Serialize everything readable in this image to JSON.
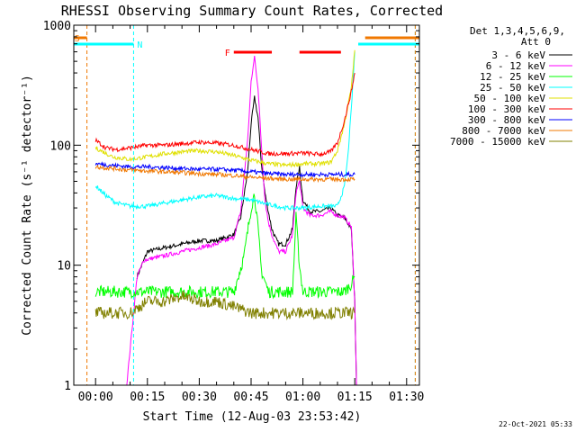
{
  "chart_data": {
    "type": "line",
    "title": "RHESSI Observing Summary Count Rates, Corrected",
    "xlabel": "Start Time (12-Aug-03 23:53:42)",
    "ylabel": "Corrected Count Rate (s⁻¹ detector⁻¹)",
    "yscale": "log",
    "ylim": [
      1,
      1000
    ],
    "xlim_minutes": [
      -6.3,
      93.7
    ],
    "yticks": [
      {
        "v": 1,
        "label": "1"
      },
      {
        "v": 10,
        "label": "10"
      },
      {
        "v": 100,
        "label": "100"
      },
      {
        "v": 1000,
        "label": "1000"
      }
    ],
    "xticks": [
      {
        "v": 0,
        "label": "00:00"
      },
      {
        "v": 15,
        "label": "00:15"
      },
      {
        "v": 30,
        "label": "00:30"
      },
      {
        "v": 45,
        "label": "00:45"
      },
      {
        "v": 60,
        "label": "01:00"
      },
      {
        "v": 75,
        "label": "01:15"
      },
      {
        "v": 90,
        "label": "01:30"
      }
    ],
    "legend": {
      "placement": "right",
      "header": [
        "Det 1,3,4,5,6,9,",
        "Att 0"
      ]
    },
    "footer_timestamp": "22-Oct-2021 05:33",
    "flags": [
      {
        "label": "S",
        "color": "#f07800",
        "segments": [
          [
            -6.3,
            -2.5
          ],
          [
            78,
            93.7
          ]
        ]
      },
      {
        "label": "N",
        "color": "#00ffff",
        "segments": [
          [
            -6.3,
            11
          ],
          [
            76,
            93.7
          ]
        ]
      },
      {
        "label": "F",
        "color": "#ff0000",
        "segments": [
          [
            40,
            51
          ],
          [
            59,
            71
          ]
        ]
      }
    ],
    "vlines": [
      {
        "x": -2.5,
        "color": "#f07800"
      },
      {
        "x": 11,
        "color": "#00ffff"
      },
      {
        "x": 92.5,
        "color": "#00ffff"
      },
      {
        "x": 92.5,
        "color": "#f07800"
      }
    ],
    "series": [
      {
        "name": "3 - 6 keV",
        "color": "#000000",
        "points": [
          [
            12,
            8
          ],
          [
            15,
            13
          ],
          [
            20,
            14
          ],
          [
            25,
            15
          ],
          [
            30,
            16
          ],
          [
            35,
            16
          ],
          [
            40,
            18
          ],
          [
            42,
            25
          ],
          [
            44,
            60
          ],
          [
            45,
            150
          ],
          [
            46,
            250
          ],
          [
            47,
            170
          ],
          [
            48,
            70
          ],
          [
            49,
            40
          ],
          [
            50,
            28
          ],
          [
            51,
            20
          ],
          [
            52,
            17
          ],
          [
            53,
            15
          ],
          [
            55,
            15
          ],
          [
            57,
            20
          ],
          [
            58,
            45
          ],
          [
            59,
            65
          ],
          [
            60,
            35
          ],
          [
            62,
            28
          ],
          [
            65,
            28
          ],
          [
            68,
            30
          ],
          [
            70,
            26
          ],
          [
            72,
            25
          ],
          [
            74,
            20
          ],
          [
            75,
            5
          ],
          [
            75.5,
            1
          ]
        ]
      },
      {
        "name": "6 - 12 keV",
        "color": "#ff00ff",
        "points": [
          [
            9,
            1
          ],
          [
            10,
            2
          ],
          [
            12,
            8
          ],
          [
            14,
            11
          ],
          [
            20,
            12
          ],
          [
            25,
            13
          ],
          [
            30,
            14
          ],
          [
            35,
            15
          ],
          [
            40,
            17
          ],
          [
            42,
            28
          ],
          [
            44,
            110
          ],
          [
            45,
            330
          ],
          [
            46,
            550
          ],
          [
            47,
            300
          ],
          [
            48,
            100
          ],
          [
            49,
            35
          ],
          [
            50,
            23
          ],
          [
            51,
            18
          ],
          [
            52,
            15
          ],
          [
            53,
            13
          ],
          [
            55,
            13
          ],
          [
            57,
            18
          ],
          [
            58,
            40
          ],
          [
            59,
            50
          ],
          [
            60,
            30
          ],
          [
            62,
            26
          ],
          [
            65,
            26
          ],
          [
            68,
            28
          ],
          [
            70,
            26
          ],
          [
            72,
            25
          ],
          [
            74,
            21
          ],
          [
            75,
            5
          ],
          [
            75.5,
            1
          ]
        ]
      },
      {
        "name": "12 - 25 keV",
        "color": "#00ff00",
        "points": [
          [
            0,
            6
          ],
          [
            10,
            6
          ],
          [
            20,
            6
          ],
          [
            30,
            6
          ],
          [
            40,
            6
          ],
          [
            43,
            12
          ],
          [
            45,
            30
          ],
          [
            46,
            40
          ],
          [
            47,
            20
          ],
          [
            48,
            9
          ],
          [
            50,
            6
          ],
          [
            57,
            6
          ],
          [
            58,
            25
          ],
          [
            59,
            10
          ],
          [
            60,
            6
          ],
          [
            70,
            6
          ],
          [
            72,
            6
          ],
          [
            74,
            7
          ],
          [
            75,
            8
          ]
        ]
      },
      {
        "name": "25 - 50 keV",
        "color": "#00ffff",
        "points": [
          [
            0,
            46
          ],
          [
            3,
            38
          ],
          [
            6,
            33
          ],
          [
            10,
            31
          ],
          [
            15,
            31
          ],
          [
            20,
            33
          ],
          [
            25,
            35
          ],
          [
            30,
            37
          ],
          [
            35,
            38
          ],
          [
            40,
            36
          ],
          [
            45,
            35
          ],
          [
            50,
            32
          ],
          [
            55,
            30
          ],
          [
            60,
            30
          ],
          [
            65,
            31
          ],
          [
            70,
            31
          ],
          [
            72,
            45
          ],
          [
            73,
            80
          ],
          [
            74,
            200
          ],
          [
            75,
            600
          ]
        ]
      },
      {
        "name": "50 - 100 keV",
        "color": "#e0e000",
        "points": [
          [
            0,
            95
          ],
          [
            5,
            80
          ],
          [
            10,
            76
          ],
          [
            15,
            80
          ],
          [
            20,
            85
          ],
          [
            25,
            88
          ],
          [
            30,
            90
          ],
          [
            35,
            88
          ],
          [
            40,
            82
          ],
          [
            45,
            75
          ],
          [
            50,
            70
          ],
          [
            55,
            68
          ],
          [
            60,
            70
          ],
          [
            65,
            70
          ],
          [
            68,
            72
          ],
          [
            70,
            90
          ],
          [
            72,
            150
          ],
          [
            74,
            300
          ],
          [
            75,
            620
          ]
        ]
      },
      {
        "name": "100 - 300 keV",
        "color": "#ff0000",
        "points": [
          [
            0,
            110
          ],
          [
            3,
            95
          ],
          [
            6,
            92
          ],
          [
            10,
            95
          ],
          [
            15,
            100
          ],
          [
            20,
            100
          ],
          [
            25,
            103
          ],
          [
            30,
            106
          ],
          [
            35,
            104
          ],
          [
            40,
            100
          ],
          [
            45,
            92
          ],
          [
            50,
            85
          ],
          [
            55,
            85
          ],
          [
            60,
            86
          ],
          [
            65,
            84
          ],
          [
            68,
            88
          ],
          [
            70,
            105
          ],
          [
            72,
            160
          ],
          [
            74,
            280
          ],
          [
            75,
            400
          ]
        ]
      },
      {
        "name": "300 - 800 keV",
        "color": "#0000ff",
        "points": [
          [
            0,
            70
          ],
          [
            5,
            68
          ],
          [
            10,
            66
          ],
          [
            15,
            66
          ],
          [
            20,
            65
          ],
          [
            25,
            64
          ],
          [
            30,
            63
          ],
          [
            35,
            63
          ],
          [
            40,
            62
          ],
          [
            45,
            60
          ],
          [
            50,
            58
          ],
          [
            55,
            57
          ],
          [
            60,
            57
          ],
          [
            65,
            57
          ],
          [
            70,
            57
          ],
          [
            75,
            57
          ]
        ]
      },
      {
        "name": "800 - 7000 keV",
        "color": "#f07800",
        "points": [
          [
            0,
            66
          ],
          [
            5,
            64
          ],
          [
            10,
            62
          ],
          [
            15,
            61
          ],
          [
            20,
            60
          ],
          [
            25,
            59
          ],
          [
            30,
            58
          ],
          [
            35,
            57
          ],
          [
            40,
            56
          ],
          [
            45,
            54
          ],
          [
            50,
            53
          ],
          [
            55,
            52
          ],
          [
            60,
            52
          ],
          [
            65,
            52
          ],
          [
            70,
            52
          ],
          [
            75,
            52
          ]
        ]
      },
      {
        "name": "7000 - 15000 keV",
        "color": "#808000",
        "points": [
          [
            0,
            4
          ],
          [
            10,
            4
          ],
          [
            15,
            5
          ],
          [
            20,
            5
          ],
          [
            25,
            5.5
          ],
          [
            30,
            5
          ],
          [
            35,
            5
          ],
          [
            40,
            4.5
          ],
          [
            45,
            4
          ],
          [
            50,
            4
          ],
          [
            55,
            4
          ],
          [
            60,
            4
          ],
          [
            65,
            4
          ],
          [
            70,
            4
          ],
          [
            75,
            4
          ]
        ]
      }
    ]
  }
}
